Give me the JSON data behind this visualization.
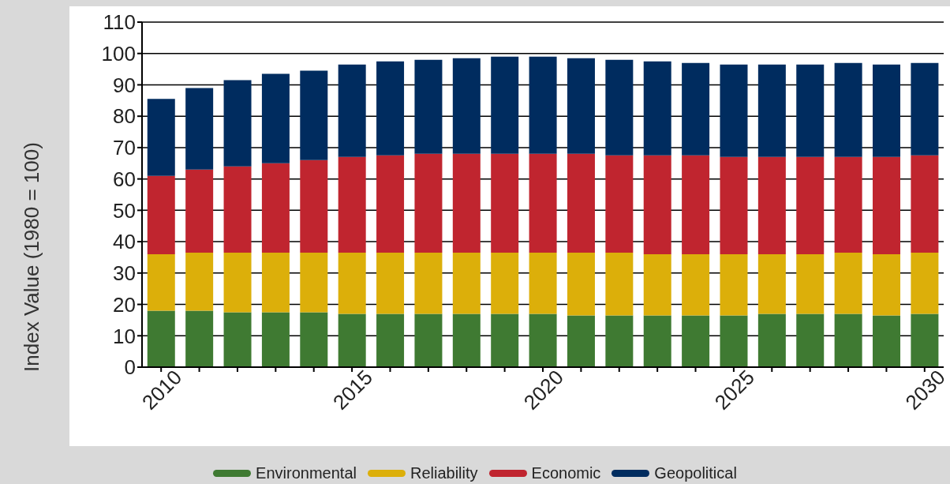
{
  "chart_data": {
    "type": "bar",
    "stacked": true,
    "ylabel": "Index Value (1980 = 100)",
    "categories": [
      "2010",
      null,
      null,
      null,
      null,
      "2015",
      null,
      null,
      null,
      null,
      "2020",
      null,
      null,
      null,
      null,
      "2025",
      null,
      null,
      null,
      null,
      "2030"
    ],
    "series": [
      {
        "name": "Environmental",
        "color": "#3f7a32",
        "values": [
          18,
          18,
          17.5,
          17.5,
          17.5,
          17,
          17,
          17,
          17,
          17,
          17,
          16.5,
          16.5,
          16.5,
          16.5,
          16.5,
          17,
          17,
          17,
          16.5,
          17
        ]
      },
      {
        "name": "Reliability",
        "color": "#dcaf0a",
        "values": [
          18,
          18.5,
          19,
          19,
          19,
          19.5,
          19.5,
          19.5,
          19.5,
          19.5,
          19.5,
          20,
          20,
          19.5,
          19.5,
          19.5,
          19,
          19,
          19.5,
          19.5,
          19.5
        ]
      },
      {
        "name": "Economic",
        "color": "#c0252f",
        "values": [
          25,
          26.5,
          27.5,
          28.5,
          29.5,
          30.5,
          31,
          31.5,
          31.5,
          31.5,
          31.5,
          31.5,
          31,
          31.5,
          31.5,
          31,
          31,
          31,
          30.5,
          31,
          31
        ]
      },
      {
        "name": "Geopolitical",
        "color": "#002c5f",
        "values": [
          24.5,
          26,
          27.5,
          28.5,
          28.5,
          29.5,
          30,
          30,
          30.5,
          31,
          31,
          30.5,
          30.5,
          30,
          29.5,
          29.5,
          29.5,
          29.5,
          30,
          29.5,
          29.5
        ]
      }
    ],
    "ylim": [
      0,
      110
    ],
    "yticks": [
      0,
      10,
      20,
      30,
      40,
      50,
      60,
      70,
      80,
      90,
      100,
      110
    ],
    "grid": "y",
    "legend": "bottom"
  }
}
